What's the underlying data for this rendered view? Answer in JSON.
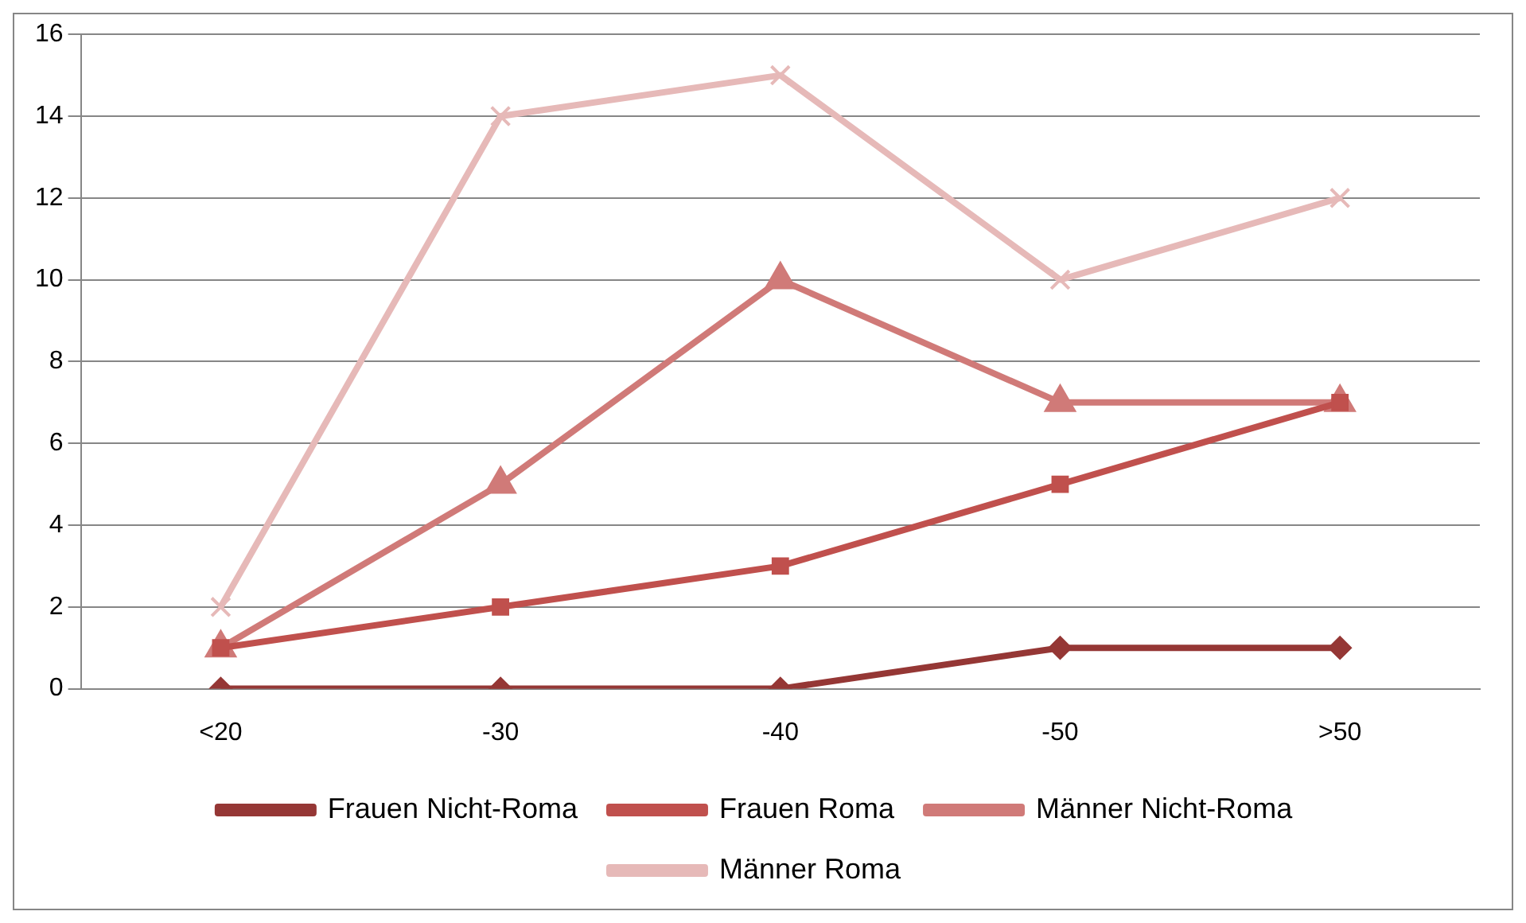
{
  "chart_data": {
    "type": "line",
    "categories": [
      "<20",
      "-30",
      "-40",
      "-50",
      ">50"
    ],
    "series": [
      {
        "name": "Frauen Nicht-Roma",
        "color": "#953735",
        "marker": "diamond",
        "values": [
          0,
          0,
          0,
          1,
          1
        ]
      },
      {
        "name": "Frauen Roma",
        "color": "#c0504d",
        "marker": "square",
        "values": [
          1,
          2,
          3,
          5,
          7
        ]
      },
      {
        "name": "Männer Nicht-Roma",
        "color": "#d07a78",
        "marker": "triangle",
        "values": [
          1,
          5,
          10,
          7,
          7
        ]
      },
      {
        "name": "Männer Roma",
        "color": "#e6b9b8",
        "marker": "cross",
        "values": [
          2,
          14,
          15,
          10,
          12
        ]
      }
    ],
    "ylim": [
      0,
      16
    ],
    "yticks": [
      0,
      2,
      4,
      6,
      8,
      10,
      12,
      14,
      16
    ],
    "grid": "y",
    "legend": "bottom",
    "line_style": "solid"
  }
}
